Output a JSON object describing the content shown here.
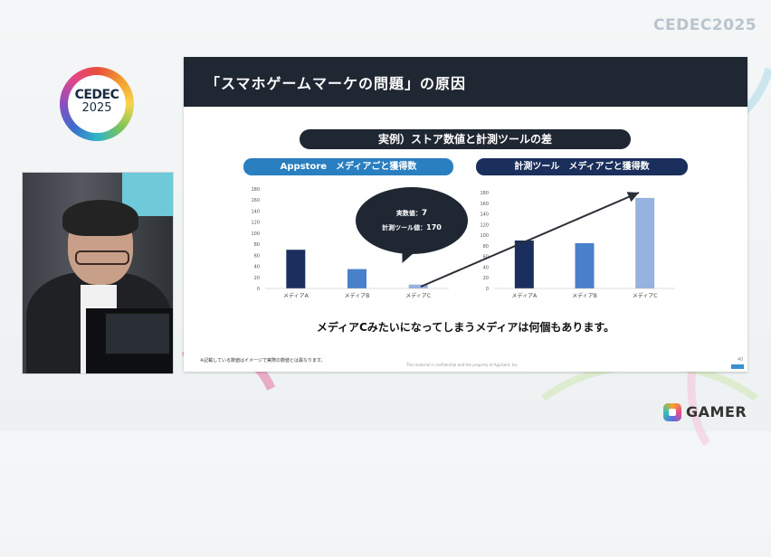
{
  "overlay": {
    "cedec_top": "CEDEC2025",
    "cedec_logo_word": "CEDEC",
    "cedec_logo_year": "2025",
    "gamer_logo": "GAMER"
  },
  "slide": {
    "title": "「スマホゲームマーケの問題」の原因",
    "example_label": "実例）ストア数値と計測ツールの差",
    "left_chart_title": "Appstore　メディアごと獲得数",
    "right_chart_title": "計測ツール　メディアごと獲得数",
    "bubble": {
      "line1_label": "実数値：",
      "line1_value": "7",
      "line2_label": "計測ツール値：",
      "line2_value": "170"
    },
    "caption": "メディアCみたいになってしまうメディアは何個もあります。",
    "footnote": "※記載している数値はイメージで実際の数値とは異なります。",
    "confidential": "This material is confidential and the property of AppGant, Inc.",
    "page_number": "40"
  },
  "colors": {
    "header": "#1f2733",
    "left_pill": "#2a7fc1",
    "right_pill": "#1a2f5b",
    "bar_a": "#1b2f5e",
    "bar_b": "#4a7fca",
    "bar_c": "#96b3df"
  },
  "chart_data": [
    {
      "type": "bar",
      "title": "Appstore　メディアごと獲得数",
      "categories": [
        "メディアA",
        "メディアB",
        "メディアC"
      ],
      "values": [
        70,
        35,
        7
      ],
      "yticks": [
        0,
        20,
        40,
        60,
        80,
        100,
        120,
        140,
        160,
        180
      ],
      "ylim": [
        0,
        180
      ],
      "grid": false
    },
    {
      "type": "bar",
      "title": "計測ツール　メディアごと獲得数",
      "categories": [
        "メディアA",
        "メディアB",
        "メディアC"
      ],
      "values": [
        90,
        85,
        170
      ],
      "yticks": [
        0,
        20,
        40,
        60,
        80,
        100,
        120,
        140,
        160,
        180
      ],
      "ylim": [
        0,
        180
      ],
      "grid": false
    }
  ]
}
